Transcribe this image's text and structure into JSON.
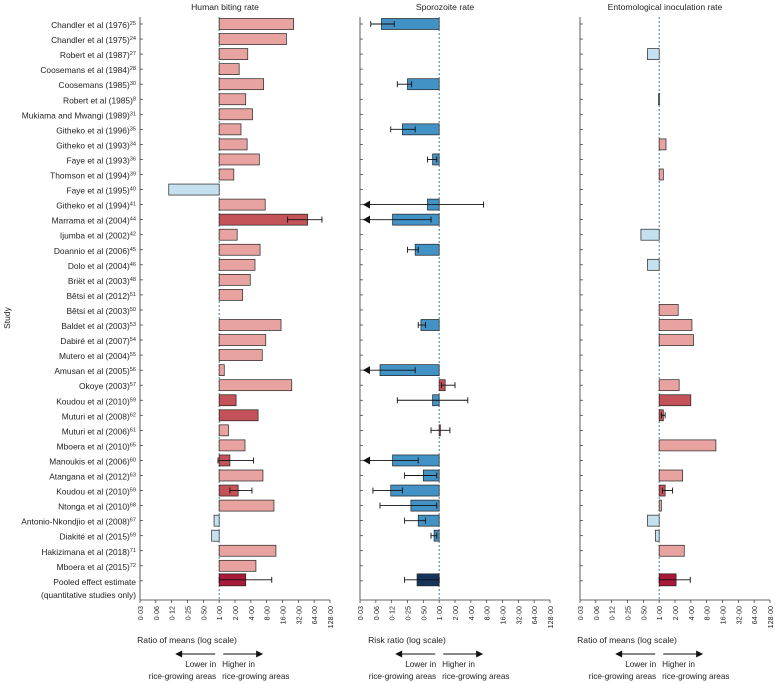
{
  "axis_label": "Study",
  "chart_data": {
    "type": "forest",
    "studies": [
      "Chandler et al (1976)",
      "Chandler et al (1975)",
      "Robert et al (1987)",
      "Coosemans et al (1984)",
      "Coosemans (1985)",
      "Robert et al (1985)",
      "Mukiama and Mwangi (1989)",
      "Githeko et al (1996)",
      "Githeko et al (1993)",
      "Faye et al (1993)",
      "Thomson et al (1994)",
      "Faye et al (1995)",
      "Githeko et al (1994)",
      "Marrama et al (2004)",
      "Ijumba et al (2002)",
      "Doannio et al (2006)",
      "Dolo et al (2004)",
      "Briët et al (2003)",
      "Bêtsi et al (2012)",
      "Bêtsi et al (2003)",
      "Baldet et al (2003)",
      "Dabiré et al (2007)",
      "Mutero et al (2004)",
      "Amusan et al (2005)",
      "Okoye (2003)",
      "Koudou et al (2010)",
      "Muturi et al (2008)",
      "Muturi et al (2006)",
      "Mboera et al (2010)",
      "Manoukis et al (2006)",
      "Atangana et al (2012)",
      "Koudou et al (2010)",
      "Ntonga et al (2010)",
      "Antonio-Nkondjio et al (2008)",
      "Diakité et al (2015)",
      "Hakizimana et al (2018)",
      "Mboera et al (2015)",
      "Pooled effect estimate"
    ],
    "refs": [
      "25",
      "24",
      "27",
      "28",
      "30",
      "8",
      "31",
      "35",
      "34",
      "36",
      "39",
      "40",
      "41",
      "44",
      "42",
      "45",
      "46",
      "48",
      "51",
      "50",
      "53",
      "54",
      "55",
      "56",
      "57",
      "59",
      "62",
      "61",
      "65",
      "60",
      "63",
      "59",
      "68",
      "67",
      "69",
      "71",
      "72",
      ""
    ],
    "footer_label": "(quantitative studies only)",
    "tick_labels": [
      "0·03",
      "0·06",
      "0·12",
      "0·25",
      "0·50",
      "1·00",
      "2·00",
      "4·00",
      "8·00",
      "16·00",
      "32·00",
      "64·00",
      "128·00"
    ],
    "xlim": [
      0.03125,
      128
    ],
    "panels": [
      {
        "title": "Human biting rate",
        "xlabel": "Ratio of means (log scale)",
        "values": [
          26,
          19,
          3.5,
          2.4,
          7,
          3.2,
          4.3,
          2.6,
          3.4,
          5.8,
          1.9,
          0.11,
          7.5,
          48,
          2.2,
          6,
          4.8,
          3.9,
          2.8,
          null,
          15,
          7.7,
          6.6,
          1.25,
          24,
          2.1,
          5.5,
          1.5,
          3.1,
          1.6,
          6.8,
          2.3,
          11,
          0.8,
          0.72,
          12,
          5
        ],
        "ci": [
          null,
          null,
          null,
          null,
          null,
          null,
          null,
          null,
          null,
          null,
          null,
          null,
          null,
          [
            20,
            90
          ],
          null,
          null,
          null,
          null,
          null,
          null,
          null,
          null,
          null,
          null,
          null,
          null,
          null,
          null,
          null,
          [
            0.95,
            4.5
          ],
          null,
          [
            1.6,
            4.2
          ],
          null,
          null,
          null,
          null,
          null
        ],
        "colors": [
          "#e8a3a1",
          "#e8a3a1",
          "#e8a3a1",
          "#e8a3a1",
          "#e8a3a1",
          "#e8a3a1",
          "#e8a3a1",
          "#e8a3a1",
          "#e8a3a1",
          "#e8a3a1",
          "#e8a3a1",
          "#c5e1ef",
          "#e8a3a1",
          "#c45259",
          "#e8a3a1",
          "#e8a3a1",
          "#e8a3a1",
          "#e8a3a1",
          "#e8a3a1",
          null,
          "#e8a3a1",
          "#e8a3a1",
          "#e8a3a1",
          "#e8a3a1",
          "#e8a3a1",
          "#c45259",
          "#c45259",
          "#e8a3a1",
          "#e8a3a1",
          "#c45259",
          "#e8a3a1",
          "#c45259",
          "#e8a3a1",
          "#c5e1ef",
          "#c5e1ef",
          "#e8a3a1",
          "#e8a3a1"
        ],
        "pooled": {
          "value": 3.2,
          "ci": [
            1,
            10
          ],
          "color": "#a8193a"
        }
      },
      {
        "title": "Sporozoite rate",
        "xlabel": "Risk ratio (log scale)",
        "values": [
          0.08,
          null,
          null,
          null,
          0.25,
          null,
          null,
          0.2,
          null,
          0.75,
          null,
          null,
          0.6,
          0.13,
          null,
          0.35,
          null,
          null,
          null,
          null,
          0.45,
          null,
          null,
          0.075,
          1.3,
          0.75,
          null,
          1.0,
          null,
          0.13,
          0.5,
          0.12,
          0.29,
          0.4,
          0.8,
          null,
          null
        ],
        "ci": [
          [
            0.05,
            0.14
          ],
          null,
          null,
          null,
          [
            0.16,
            0.3
          ],
          null,
          null,
          [
            0.12,
            0.35
          ],
          null,
          [
            0.6,
            0.9
          ],
          null,
          null,
          [
            0.034,
            7
          ],
          [
            0.034,
            0.7
          ],
          null,
          [
            0.25,
            0.4
          ],
          null,
          null,
          null,
          null,
          [
            0.4,
            0.55
          ],
          null,
          null,
          [
            0.034,
            0.35
          ],
          [
            1.1,
            2
          ],
          [
            0.16,
            3.5
          ],
          null,
          [
            0.7,
            1.6
          ],
          null,
          [
            0.034,
            0.4
          ],
          [
            0.22,
            0.9
          ],
          [
            0.055,
            0.2
          ],
          [
            0.075,
            0.9
          ],
          [
            0.22,
            0.55
          ],
          [
            0.7,
            0.9
          ],
          null,
          null
        ],
        "colors": [
          "#4292c6",
          null,
          null,
          null,
          "#4292c6",
          null,
          null,
          "#4292c6",
          null,
          "#4292c6",
          null,
          null,
          "#4292c6",
          "#4292c6",
          null,
          "#4292c6",
          null,
          null,
          null,
          null,
          "#4292c6",
          null,
          null,
          "#4292c6",
          "#c45259",
          "#4292c6",
          null,
          "#c45259",
          null,
          "#4292c6",
          "#4292c6",
          "#4292c6",
          "#4292c6",
          "#4292c6",
          "#4292c6",
          null,
          null
        ],
        "pooled": {
          "value": 0.38,
          "ci": [
            0.22,
            1
          ],
          "color": "#15355f"
        }
      },
      {
        "title": "Entomological inoculation rate",
        "xlabel": "Ratio of means (log scale)",
        "values": [
          null,
          null,
          0.6,
          null,
          null,
          0.97,
          null,
          null,
          1.35,
          null,
          1.2,
          null,
          null,
          null,
          0.45,
          null,
          0.6,
          null,
          null,
          2.3,
          4.2,
          4.5,
          null,
          null,
          2.4,
          4.0,
          1.2,
          null,
          12,
          null,
          2.8,
          1.3,
          1.1,
          0.6,
          0.85,
          3.0,
          null
        ],
        "ci": [
          null,
          null,
          null,
          null,
          null,
          null,
          null,
          null,
          null,
          null,
          null,
          null,
          null,
          null,
          null,
          null,
          null,
          null,
          null,
          null,
          null,
          null,
          null,
          null,
          null,
          null,
          [
            1.1,
            1.3
          ],
          null,
          null,
          null,
          null,
          [
            1.15,
            1.8
          ],
          null,
          null,
          null,
          null,
          null
        ],
        "colors": [
          null,
          null,
          "#c5e1ef",
          null,
          null,
          "#c5e1ef",
          null,
          null,
          "#e8a3a1",
          null,
          "#e8a3a1",
          null,
          null,
          null,
          "#c5e1ef",
          null,
          "#c5e1ef",
          null,
          null,
          "#e8a3a1",
          "#e8a3a1",
          "#e8a3a1",
          null,
          null,
          "#e8a3a1",
          "#c45259",
          "#c45259",
          null,
          "#e8a3a1",
          null,
          "#e8a3a1",
          "#c45259",
          "#e8a3a1",
          "#c5e1ef",
          "#c5e1ef",
          "#e8a3a1",
          null
        ],
        "pooled": {
          "value": 2.1,
          "ci": [
            1,
            3.9
          ],
          "color": "#a8193a"
        }
      }
    ],
    "direction_labels": {
      "lower": [
        "Lower in",
        "rice-growing areas"
      ],
      "higher": [
        "Higher in",
        "rice-growing areas"
      ]
    }
  }
}
